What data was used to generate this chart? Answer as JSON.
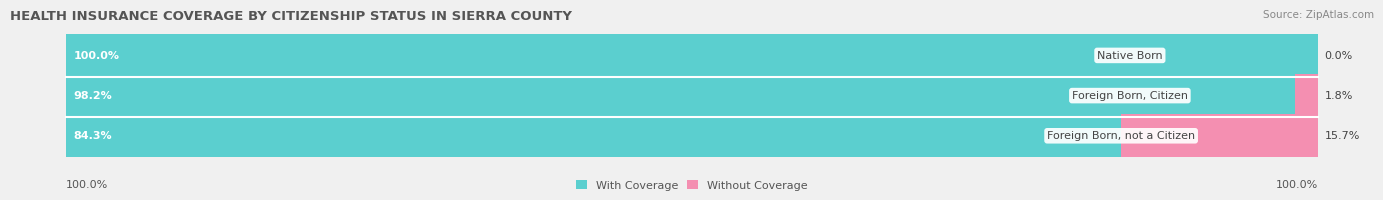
{
  "title": "HEALTH INSURANCE COVERAGE BY CITIZENSHIP STATUS IN SIERRA COUNTY",
  "source": "Source: ZipAtlas.com",
  "categories": [
    "Native Born",
    "Foreign Born, Citizen",
    "Foreign Born, not a Citizen"
  ],
  "with_coverage": [
    100.0,
    98.2,
    84.3
  ],
  "without_coverage": [
    0.0,
    1.8,
    15.7
  ],
  "color_with": "#5BCFCF",
  "color_without": "#F48FB1",
  "bg_color": "#f0f0f0",
  "bar_bg_color": "#dcdcdc",
  "title_fontsize": 9.5,
  "label_fontsize": 8.0,
  "tick_fontsize": 8.0,
  "source_fontsize": 7.5,
  "left_label": "100.0%",
  "right_label": "100.0%"
}
